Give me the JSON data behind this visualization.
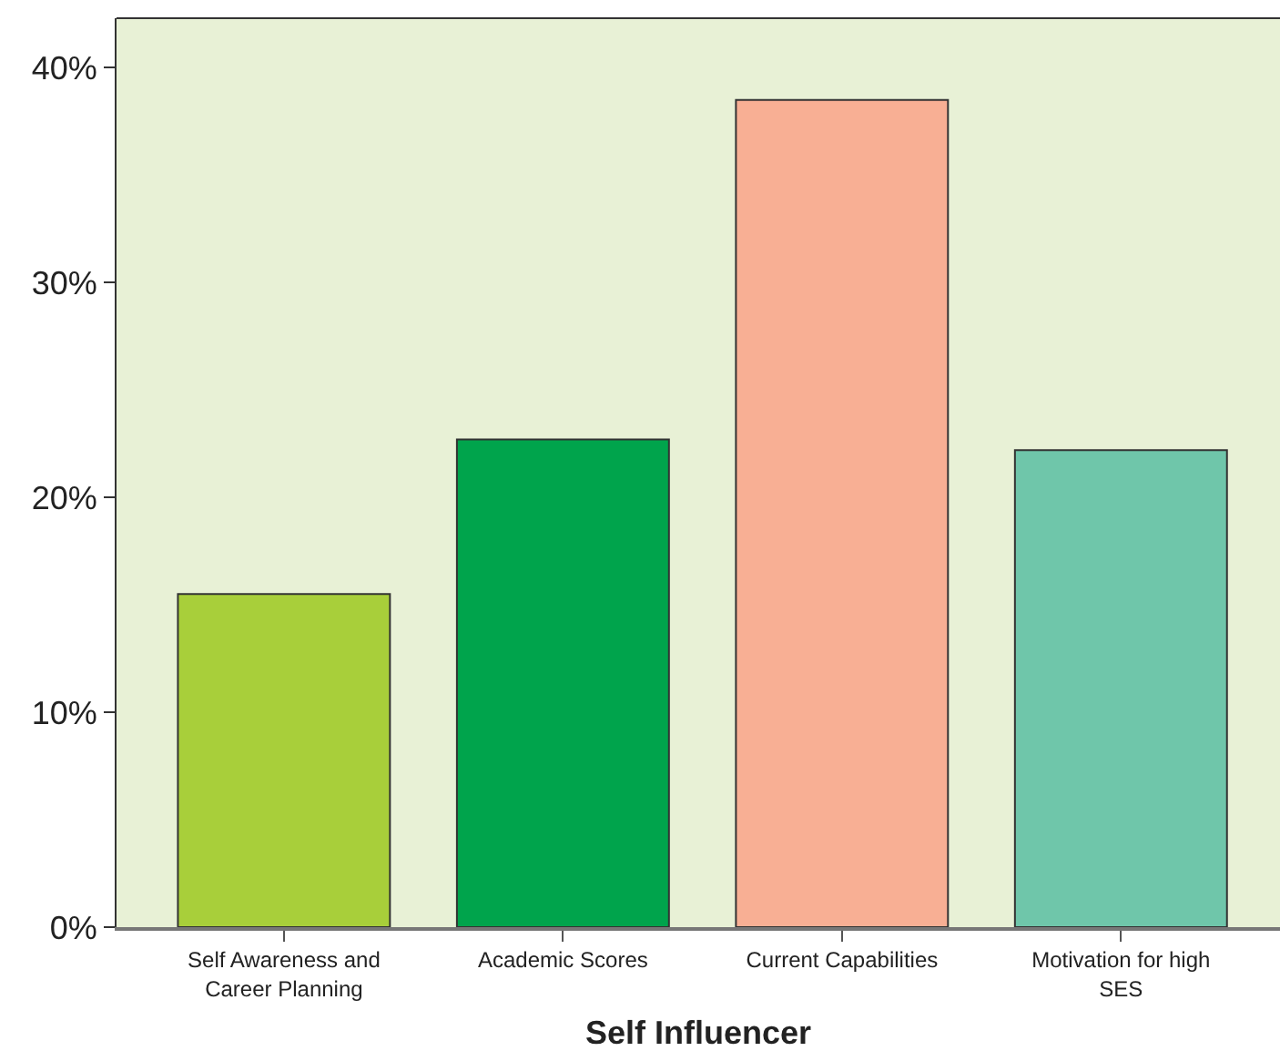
{
  "chart_data": {
    "type": "bar",
    "xlabel": "Self Influencer",
    "categories": [
      "Self Awareness and\nCareer Planning",
      "Academic Scores",
      "Current Capabilities",
      "Motivation for high\nSES"
    ],
    "values": [
      15.5,
      22.7,
      38.5,
      22.2
    ],
    "colors": [
      "#a8cf3a",
      "#00a44c",
      "#f8af94",
      "#6fc6aa"
    ],
    "ylim": [
      0,
      42.3
    ],
    "yticks": [
      {
        "value": 0,
        "label": "0%"
      },
      {
        "value": 10,
        "label": "10%"
      },
      {
        "value": 20,
        "label": "20%"
      },
      {
        "value": 30,
        "label": "30%"
      },
      {
        "value": 40,
        "label": "40%"
      }
    ],
    "grid": false
  }
}
